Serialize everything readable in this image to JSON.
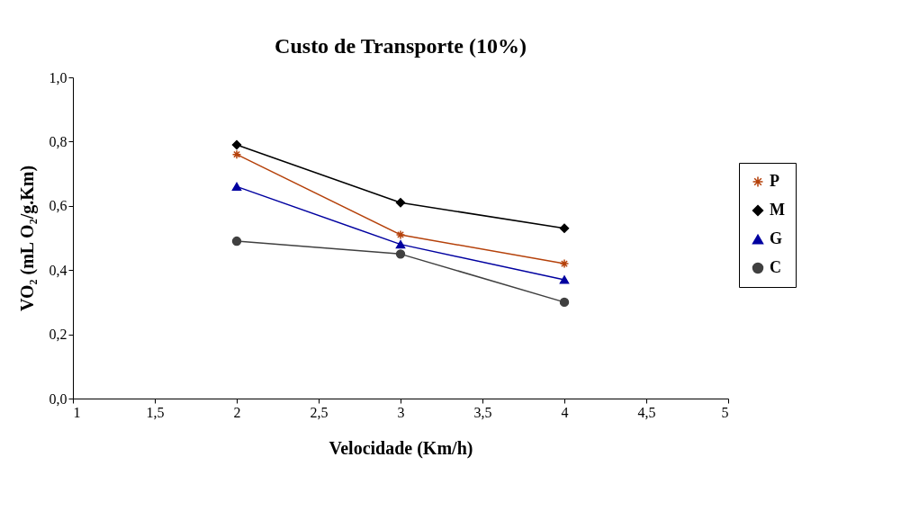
{
  "chart_data": {
    "type": "line",
    "title": "Custo de Transporte (10%)",
    "xlabel": "Velocidade (Km/h)",
    "ylabel": "VO₂ (mL O₂/g.Km)",
    "x": [
      2,
      3,
      4
    ],
    "series": [
      {
        "name": "P",
        "color": "#b5410a",
        "marker": "cross",
        "values": [
          0.76,
          0.51,
          0.42
        ]
      },
      {
        "name": "M",
        "color": "#000000",
        "marker": "diamond",
        "values": [
          0.79,
          0.61,
          0.53
        ]
      },
      {
        "name": "G",
        "color": "#0000a0",
        "marker": "triangle",
        "values": [
          0.66,
          0.48,
          0.37
        ]
      },
      {
        "name": "C",
        "color": "#404040",
        "marker": "circle",
        "values": [
          0.49,
          0.45,
          0.3
        ]
      }
    ],
    "xlim": [
      1,
      5
    ],
    "xticks": [
      1,
      {
        "value": 1.5,
        "label": "1,5"
      },
      2,
      {
        "value": 2.5,
        "label": "2,5"
      },
      3,
      {
        "value": 3.5,
        "label": "3,5"
      },
      4,
      {
        "value": 4.5,
        "label": "4,5"
      },
      5
    ],
    "ylim": [
      0,
      1
    ],
    "yticks": [
      {
        "value": 0,
        "label": "0,0"
      },
      {
        "value": 0.2,
        "label": "0,2"
      },
      {
        "value": 0.4,
        "label": "0,4"
      },
      {
        "value": 0.6,
        "label": "0,6"
      },
      {
        "value": 0.8,
        "label": "0,8"
      },
      {
        "value": 1.0,
        "label": "1,0"
      }
    ],
    "grid": false,
    "legend": "right",
    "line_style": "solid"
  }
}
